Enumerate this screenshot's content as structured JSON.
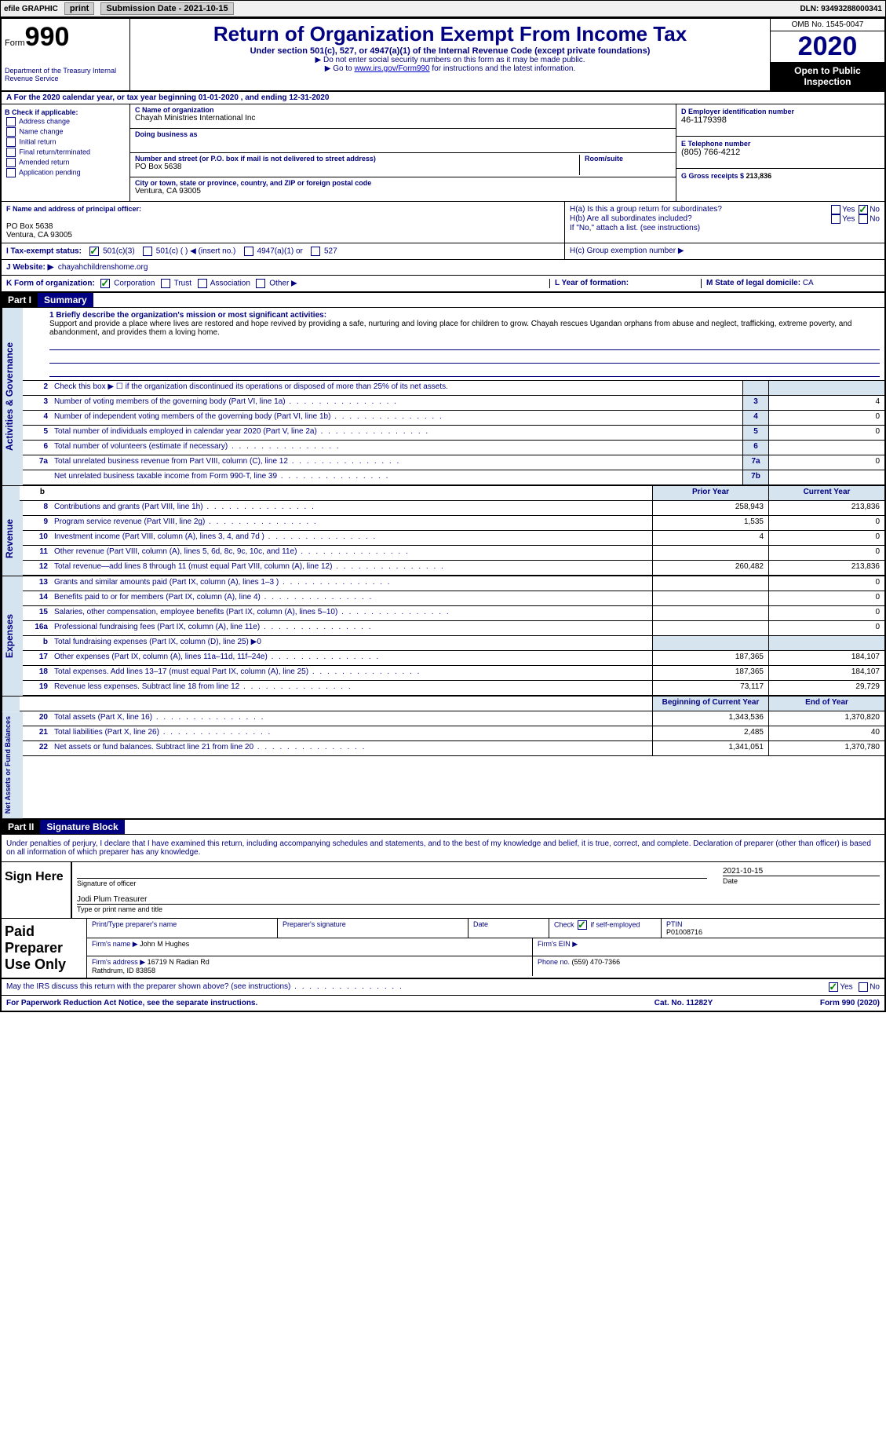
{
  "colors": {
    "primary": "#000080",
    "shade": "#d6e4f0",
    "link": "#0000cc",
    "check": "#008000"
  },
  "topbar": {
    "efile": "efile GRAPHIC",
    "print": "print",
    "subdate_label": "Submission Date - ",
    "subdate": "2021-10-15",
    "dln_label": "DLN: ",
    "dln": "93493288000341"
  },
  "header": {
    "form_label": "Form",
    "form_num": "990",
    "dept": "Department of the Treasury\nInternal Revenue Service",
    "title": "Return of Organization Exempt From Income Tax",
    "subtitle": "Under section 501(c), 527, or 4947(a)(1) of the Internal Revenue Code (except private foundations)",
    "note1": "▶ Do not enter social security numbers on this form as it may be made public.",
    "note2_pre": "▶ Go to ",
    "note2_link": "www.irs.gov/Form990",
    "note2_post": " for instructions and the latest information.",
    "omb": "OMB No. 1545-0047",
    "year": "2020",
    "open": "Open to Public Inspection"
  },
  "row_a": "A For the 2020 calendar year, or tax year beginning 01-01-2020    , and ending 12-31-2020",
  "col_b": {
    "label": "B Check if applicable:",
    "items": [
      "Address change",
      "Name change",
      "Initial return",
      "Final return/terminated",
      "Amended return",
      "Application pending"
    ]
  },
  "col_c": {
    "name_label": "C Name of organization",
    "name": "Chayah Ministries International Inc",
    "dba_label": "Doing business as",
    "dba": "",
    "addr_label": "Number and street (or P.O. box if mail is not delivered to street address)",
    "room_label": "Room/suite",
    "addr": "PO Box 5638",
    "city_label": "City or town, state or province, country, and ZIP or foreign postal code",
    "city": "Ventura, CA  93005"
  },
  "col_d": {
    "ein_label": "D Employer identification number",
    "ein": "46-1179398",
    "tel_label": "E Telephone number",
    "tel": "(805) 766-4212",
    "gross_label": "G Gross receipts $ ",
    "gross": "213,836"
  },
  "row_f": {
    "label": "F Name and address of principal officer:",
    "name": "",
    "addr1": "PO Box 5638",
    "addr2": "Ventura, CA  93005"
  },
  "row_h": {
    "ha": "H(a)  Is this a group return for subordinates?",
    "hb": "H(b)  Are all subordinates included?",
    "hb_note": "If \"No,\" attach a list. (see instructions)",
    "hc": "H(c)  Group exemption number ▶",
    "yes": "Yes",
    "no": "No",
    "ha_no_checked": true
  },
  "row_i": {
    "label": "I  Tax-exempt status:",
    "opt1": "501(c)(3)",
    "opt2": "501(c) (  ) ◀ (insert no.)",
    "opt3": "4947(a)(1) or",
    "opt4": "527",
    "checked_501c3": true
  },
  "row_j": {
    "label": "J  Website: ▶",
    "val": "chayahchildrenshome.org"
  },
  "row_k": {
    "label": "K Form of organization:",
    "opts": [
      "Corporation",
      "Trust",
      "Association",
      "Other ▶"
    ],
    "checked_corp": true,
    "l_label": "L Year of formation:",
    "l_val": "",
    "m_label": "M State of legal domicile: ",
    "m_val": "CA"
  },
  "part1": {
    "header": "Part I",
    "title": "Summary"
  },
  "summary": {
    "line1_label": "1  Briefly describe the organization's mission or most significant activities:",
    "line1_text": "Support and provide a place where lives are restored and hope revived by providing a safe, nurturing and loving place for children to grow. Chayah rescues Ugandan orphans from abuse and neglect, trafficking, extreme poverty, and abandonment, and provides them a loving home.",
    "line2": "Check this box ▶ ☐ if the organization discontinued its operations or disposed of more than 25% of its net assets."
  },
  "gov_lines": [
    {
      "n": "3",
      "desc": "Number of voting members of the governing body (Part VI, line 1a)",
      "box": "3",
      "val": "4"
    },
    {
      "n": "4",
      "desc": "Number of independent voting members of the governing body (Part VI, line 1b)",
      "box": "4",
      "val": "0"
    },
    {
      "n": "5",
      "desc": "Total number of individuals employed in calendar year 2020 (Part V, line 2a)",
      "box": "5",
      "val": "0"
    },
    {
      "n": "6",
      "desc": "Total number of volunteers (estimate if necessary)",
      "box": "6",
      "val": ""
    },
    {
      "n": "7a",
      "desc": "Total unrelated business revenue from Part VIII, column (C), line 12",
      "box": "7a",
      "val": "0"
    },
    {
      "n": "",
      "desc": "Net unrelated business taxable income from Form 990-T, line 39",
      "box": "7b",
      "val": ""
    }
  ],
  "two_col_header": {
    "prior": "Prior Year",
    "current": "Current Year"
  },
  "rev_lines": [
    {
      "n": "8",
      "desc": "Contributions and grants (Part VIII, line 1h)",
      "prior": "258,943",
      "cur": "213,836"
    },
    {
      "n": "9",
      "desc": "Program service revenue (Part VIII, line 2g)",
      "prior": "1,535",
      "cur": "0"
    },
    {
      "n": "10",
      "desc": "Investment income (Part VIII, column (A), lines 3, 4, and 7d )",
      "prior": "4",
      "cur": "0"
    },
    {
      "n": "11",
      "desc": "Other revenue (Part VIII, column (A), lines 5, 6d, 8c, 9c, 10c, and 11e)",
      "prior": "",
      "cur": "0"
    },
    {
      "n": "12",
      "desc": "Total revenue—add lines 8 through 11 (must equal Part VIII, column (A), line 12)",
      "prior": "260,482",
      "cur": "213,836"
    }
  ],
  "exp_lines": [
    {
      "n": "13",
      "desc": "Grants and similar amounts paid (Part IX, column (A), lines 1–3 )",
      "prior": "",
      "cur": "0"
    },
    {
      "n": "14",
      "desc": "Benefits paid to or for members (Part IX, column (A), line 4)",
      "prior": "",
      "cur": "0"
    },
    {
      "n": "15",
      "desc": "Salaries, other compensation, employee benefits (Part IX, column (A), lines 5–10)",
      "prior": "",
      "cur": "0"
    },
    {
      "n": "16a",
      "desc": "Professional fundraising fees (Part IX, column (A), line 11e)",
      "prior": "",
      "cur": "0"
    },
    {
      "n": "b",
      "desc": "Total fundraising expenses (Part IX, column (D), line 25) ▶0",
      "prior": "SHADE",
      "cur": "SHADE"
    },
    {
      "n": "17",
      "desc": "Other expenses (Part IX, column (A), lines 11a–11d, 11f–24e)",
      "prior": "187,365",
      "cur": "184,107"
    },
    {
      "n": "18",
      "desc": "Total expenses. Add lines 13–17 (must equal Part IX, column (A), line 25)",
      "prior": "187,365",
      "cur": "184,107"
    },
    {
      "n": "19",
      "desc": "Revenue less expenses. Subtract line 18 from line 12",
      "prior": "73,117",
      "cur": "29,729"
    }
  ],
  "net_header": {
    "begin": "Beginning of Current Year",
    "end": "End of Year"
  },
  "net_lines": [
    {
      "n": "20",
      "desc": "Total assets (Part X, line 16)",
      "prior": "1,343,536",
      "cur": "1,370,820"
    },
    {
      "n": "21",
      "desc": "Total liabilities (Part X, line 26)",
      "prior": "2,485",
      "cur": "40"
    },
    {
      "n": "22",
      "desc": "Net assets or fund balances. Subtract line 21 from line 20",
      "prior": "1,341,051",
      "cur": "1,370,780"
    }
  ],
  "part2": {
    "header": "Part II",
    "title": "Signature Block"
  },
  "sig": {
    "perjury": "Under penalties of perjury, I declare that I have examined this return, including accompanying schedules and statements, and to the best of my knowledge and belief, it is true, correct, and complete. Declaration of preparer (other than officer) is based on all information of which preparer has any knowledge.",
    "sign_here": "Sign Here",
    "sig_officer": "Signature of officer",
    "date": "Date",
    "date_val": "2021-10-15",
    "name_title": "Jodi Plum Treasurer",
    "type_name": "Type or print name and title"
  },
  "paid": {
    "label": "Paid Preparer Use Only",
    "print_name_label": "Print/Type preparer's name",
    "print_name": "",
    "sig_label": "Preparer's signature",
    "date_label": "Date",
    "check_label": "Check ☑ if self-employed",
    "check_checked": true,
    "ptin_label": "PTIN",
    "ptin": "P01008716",
    "firm_name_label": "Firm's name   ▶",
    "firm_name": "John M Hughes",
    "firm_ein_label": "Firm's EIN ▶",
    "firm_ein": "",
    "firm_addr_label": "Firm's address ▶",
    "firm_addr": "16719 N Radian Rd\nRathdrum, ID  83858",
    "phone_label": "Phone no. ",
    "phone": "(559) 470-7366"
  },
  "footer": {
    "discuss": "May the IRS discuss this return with the preparer shown above? (see instructions)",
    "yes": "Yes",
    "no": "No",
    "yes_checked": true,
    "pra": "For Paperwork Reduction Act Notice, see the separate instructions.",
    "cat": "Cat. No. 11282Y",
    "form": "Form 990 (2020)"
  },
  "side_labels": {
    "gov": "Activities & Governance",
    "rev": "Revenue",
    "exp": "Expenses",
    "net": "Net Assets or Fund Balances"
  }
}
